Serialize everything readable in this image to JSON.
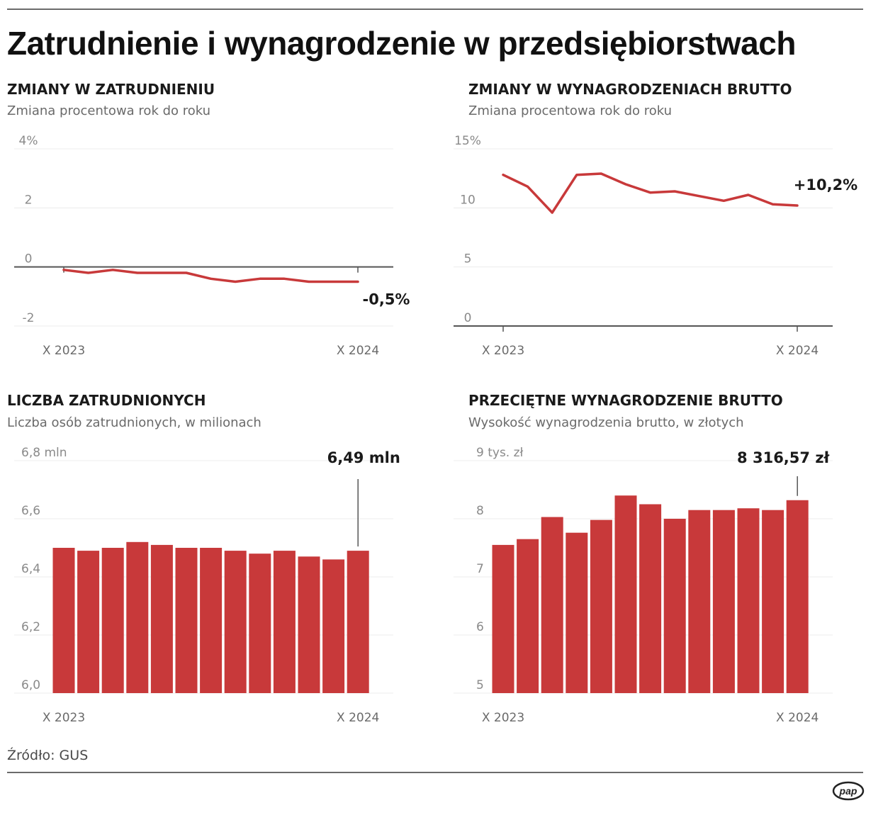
{
  "title": "Zatrudnienie i wynagrodzenie w przedsiębiorstwach",
  "source": "Źródło: GUS",
  "logo_text": "pap",
  "colors": {
    "series": "#c8393a",
    "axis": "#555555",
    "grid": "#ececec"
  },
  "chart_data": [
    {
      "type": "line",
      "title": "ZMIANY W ZATRUDNIENIU",
      "subtitle": "Zmiana procentowa rok do roku",
      "x_tick_labels": [
        "X 2023",
        "X 2024"
      ],
      "y_ticks": [
        -2,
        0,
        2,
        4
      ],
      "y_tick_labels": [
        "-2",
        "0",
        "2",
        "4%"
      ],
      "ylim": [
        -2,
        4
      ],
      "baseline": 0,
      "values": [
        -0.1,
        -0.2,
        -0.1,
        -0.2,
        -0.2,
        -0.2,
        -0.4,
        -0.5,
        -0.4,
        -0.4,
        -0.5,
        -0.5,
        -0.5
      ],
      "callout": "-0,5%"
    },
    {
      "type": "line",
      "title": "ZMIANY W WYNAGRODZENIACH BRUTTO",
      "subtitle": "Zmiana procentowa rok do roku",
      "x_tick_labels": [
        "X 2023",
        "X 2024"
      ],
      "y_ticks": [
        0,
        5,
        10,
        15
      ],
      "y_tick_labels": [
        "0",
        "5",
        "10",
        "15%"
      ],
      "ylim": [
        0,
        15
      ],
      "baseline": 0,
      "values": [
        12.8,
        11.8,
        9.6,
        12.8,
        12.9,
        12.0,
        11.3,
        11.4,
        11.0,
        10.6,
        11.1,
        10.3,
        10.2
      ],
      "callout": "+10,2%"
    },
    {
      "type": "bar",
      "title": "LICZBA ZATRUDNIONYCH",
      "subtitle": "Liczba osób zatrudnionych, w milionach",
      "x_tick_labels": [
        "X 2023",
        "X 2024"
      ],
      "y_ticks": [
        6.0,
        6.2,
        6.4,
        6.6,
        6.8
      ],
      "y_tick_labels": [
        "6,0",
        "6,2",
        "6,4",
        "6,6",
        "6,8 mln"
      ],
      "ylim": [
        6.0,
        6.8
      ],
      "values": [
        6.5,
        6.49,
        6.5,
        6.52,
        6.51,
        6.5,
        6.5,
        6.49,
        6.48,
        6.49,
        6.47,
        6.46,
        6.49
      ],
      "callout": "6,49 mln"
    },
    {
      "type": "bar",
      "title": "PRZECIĘTNE WYNAGRODZENIE BRUTTO",
      "subtitle": "Wysokość wynagrodzenia brutto, w złotych",
      "x_tick_labels": [
        "X 2023",
        "X 2024"
      ],
      "y_ticks": [
        5,
        6,
        7,
        8,
        9
      ],
      "y_tick_labels": [
        "5",
        "6",
        "7",
        "8",
        "9 tys. zł"
      ],
      "ylim": [
        5,
        9
      ],
      "values": [
        7.55,
        7.65,
        8.03,
        7.76,
        7.98,
        8.4,
        8.25,
        8.0,
        8.15,
        8.15,
        8.18,
        8.15,
        8.32
      ],
      "callout": "8 316,57 zł"
    }
  ]
}
